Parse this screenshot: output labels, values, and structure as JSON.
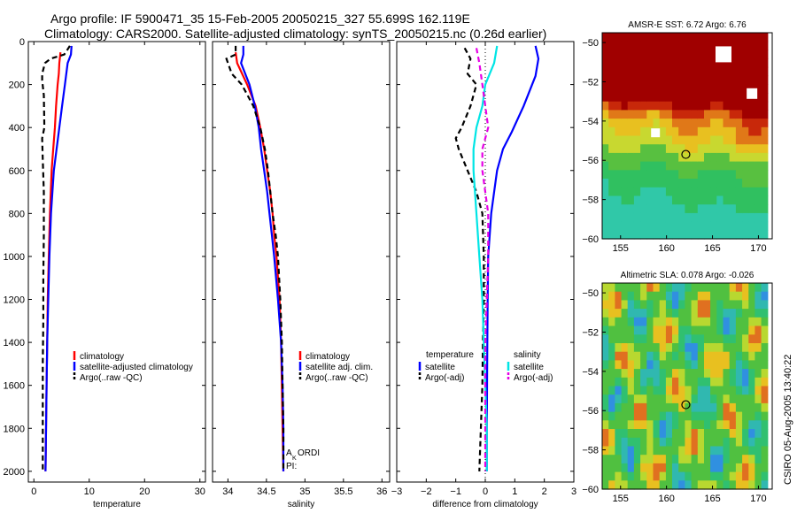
{
  "header": {
    "title_line1": "Argo profile: IF 5900471_35 15-Feb-2005 20050215_327 55.699S 162.119E",
    "title_line2": "Climatology: CARS2000. Satellite-adjusted climatology: synTS_20050215.nc (0.26d earlier)"
  },
  "credit": "CSIRO 05-Aug-2005 13:40:22",
  "colors": {
    "climatology": "#ff0000",
    "satellite": "#0000ff",
    "argo": "#000000",
    "salinity_diff_satellite": "#00e5e5",
    "salinity_diff_argo": "#e600e6"
  },
  "chart_data": [
    {
      "id": "temperature",
      "type": "line",
      "xlabel": "temperature",
      "ylabel": "",
      "xlim": [
        -1,
        31
      ],
      "ylim": [
        2050,
        0
      ],
      "xticks": [
        0,
        10,
        20,
        30
      ],
      "yticks": [
        0,
        200,
        400,
        600,
        800,
        1000,
        1200,
        1400,
        1600,
        1800,
        2000
      ],
      "legend": [
        "climatology",
        "satellite-adjusted climatology",
        "Argo(..raw -QC)"
      ],
      "series": [
        {
          "name": "climatology",
          "color": "#ff0000",
          "dash": false,
          "depth": [
            50,
            100,
            150,
            200,
            300,
            400,
            500,
            600,
            800,
            1000,
            1200,
            1400,
            1600,
            1800,
            2000
          ],
          "values": [
            4.8,
            4.6,
            4.5,
            4.3,
            4.0,
            3.8,
            3.5,
            3.2,
            2.9,
            2.7,
            2.5,
            2.4,
            2.3,
            2.2,
            2.1
          ]
        },
        {
          "name": "satellite-adjusted climatology",
          "color": "#0000ff",
          "dash": false,
          "depth": [
            20,
            60,
            100,
            200,
            300,
            400,
            500,
            600,
            800,
            1000,
            1200,
            1400,
            1600,
            1800,
            2000
          ],
          "values": [
            6.8,
            6.7,
            6.1,
            5.6,
            5.1,
            4.6,
            4.1,
            3.6,
            3.1,
            2.8,
            2.6,
            2.4,
            2.3,
            2.2,
            2.1
          ]
        },
        {
          "name": "Argo(..raw -QC)",
          "color": "#000000",
          "dash": true,
          "depth": [
            20,
            60,
            80,
            100,
            150,
            180,
            250,
            400,
            450,
            550,
            700,
            900,
            1100,
            1300,
            1500,
            1700,
            1900,
            2000
          ],
          "values": [
            6.5,
            5.5,
            3.0,
            2.0,
            1.5,
            1.5,
            1.8,
            1.9,
            1.5,
            1.6,
            1.8,
            1.8,
            1.7,
            1.7,
            1.6,
            1.6,
            1.6,
            1.6
          ]
        }
      ]
    },
    {
      "id": "salinity",
      "type": "line",
      "xlabel": "salinity",
      "ylabel": "",
      "xlim": [
        33.8,
        36.1
      ],
      "ylim": [
        2050,
        0
      ],
      "xticks": [
        34,
        34.5,
        35,
        35.5,
        36
      ],
      "legend": [
        "climatology",
        "satellite adj. clim.",
        "Argo(..raw -QC)"
      ],
      "annotation_line1": "A ORDI",
      "annotation_sub": "K",
      "annotation_line2": "PI:",
      "series": [
        {
          "name": "climatology",
          "color": "#ff0000",
          "dash": false,
          "depth": [
            50,
            100,
            200,
            300,
            400,
            500,
            600,
            700,
            800,
            900,
            1000,
            1200,
            1400,
            1600,
            1800,
            2000
          ],
          "values": [
            34.1,
            34.12,
            34.25,
            34.36,
            34.42,
            34.47,
            34.51,
            34.55,
            34.58,
            34.6,
            34.63,
            34.67,
            34.69,
            34.7,
            34.71,
            34.72
          ]
        },
        {
          "name": "satellite adj. clim.",
          "color": "#0000ff",
          "dash": false,
          "depth": [
            20,
            60,
            100,
            200,
            300,
            400,
            500,
            600,
            700,
            800,
            900,
            1000,
            1200,
            1400,
            1600,
            1800,
            2000
          ],
          "values": [
            34.2,
            34.2,
            34.17,
            34.28,
            34.35,
            34.4,
            34.43,
            34.47,
            34.51,
            34.54,
            34.57,
            34.6,
            34.65,
            34.69,
            34.71,
            34.72,
            34.72
          ]
        },
        {
          "name": "Argo(..raw -QC)",
          "color": "#000000",
          "dash": true,
          "depth": [
            20,
            60,
            80,
            150,
            200,
            300,
            400,
            500,
            600,
            700,
            800,
            900,
            1000,
            1200,
            1400,
            1600,
            1800,
            2000
          ],
          "values": [
            34.1,
            34.1,
            33.98,
            34.05,
            34.18,
            34.33,
            34.42,
            34.48,
            34.52,
            34.55,
            34.58,
            34.62,
            34.65,
            34.68,
            34.7,
            34.71,
            34.72,
            34.72
          ]
        }
      ]
    },
    {
      "id": "difference",
      "type": "line",
      "xlabel": "difference from climatology",
      "ylabel": "",
      "xlim": [
        -3,
        3
      ],
      "ylim": [
        2050,
        0
      ],
      "xticks": [
        -3,
        -2,
        -1,
        0,
        1,
        2,
        3
      ],
      "legend_temperature_title": "temperature",
      "legend_temperature": [
        "satellite",
        "Argo(-adj)"
      ],
      "legend_salinity_title": "salinity",
      "legend_salinity": [
        "satellite",
        "Argo(-adj)"
      ],
      "series": [
        {
          "name": "satellite",
          "group": "temperature",
          "color": "#0000ff",
          "dash": false,
          "depth": [
            20,
            80,
            160,
            300,
            420,
            500,
            600,
            700,
            800,
            1000,
            1200,
            1400,
            1600,
            1800,
            2000
          ],
          "values": [
            1.7,
            1.8,
            1.7,
            1.3,
            0.9,
            0.6,
            0.4,
            0.3,
            0.2,
            0.1,
            0.08,
            0.07,
            0.06,
            0.05,
            0.05
          ]
        },
        {
          "name": "Argo(-adj)",
          "group": "temperature",
          "color": "#000000",
          "dash": true,
          "depth": [
            30,
            80,
            150,
            200,
            300,
            400,
            450,
            500,
            600,
            700,
            800,
            1000,
            1200,
            1400,
            1600,
            1800,
            2000
          ],
          "values": [
            -0.7,
            -0.5,
            -0.6,
            -0.3,
            -0.5,
            -0.8,
            -1.0,
            -0.9,
            -0.6,
            -0.3,
            -0.1,
            -0.05,
            -0.05,
            -0.08,
            -0.1,
            -0.15,
            -0.2
          ]
        },
        {
          "name": "satellite",
          "group": "salinity",
          "color": "#00e5e5",
          "dash": false,
          "depth": [
            20,
            100,
            200,
            300,
            400,
            500,
            600,
            800,
            1000,
            1200,
            1400,
            1600,
            1800,
            2000
          ],
          "values": [
            0.4,
            0.3,
            0.0,
            -0.1,
            -0.3,
            -0.4,
            -0.4,
            -0.3,
            -0.2,
            -0.1,
            -0.05,
            0.0,
            0.05,
            0.05
          ]
        },
        {
          "name": "Argo(-adj)",
          "group": "salinity",
          "color": "#e600e6",
          "dash": true,
          "depth": [
            30,
            100,
            200,
            300,
            400,
            500,
            600,
            800,
            1000,
            1200,
            1400,
            1600,
            1800,
            2000
          ],
          "values": [
            -0.3,
            -0.2,
            -0.1,
            0.0,
            0.1,
            -0.1,
            -0.1,
            0.1,
            0.1,
            0.05,
            0.0,
            0.0,
            0.0,
            0.0
          ]
        }
      ]
    },
    {
      "id": "sst-map",
      "type": "heatmap",
      "title": "AMSR-E SST: 6.72 Argo: 6.76",
      "xlim": [
        153,
        171.5
      ],
      "ylim": [
        -60,
        -49.5
      ],
      "xticks": [
        155,
        160,
        165,
        170
      ],
      "yticks": [
        -50,
        -52,
        -54,
        -56,
        -58,
        -60
      ],
      "profile_marker": [
        162.1,
        -55.7
      ]
    },
    {
      "id": "sla-map",
      "type": "heatmap",
      "title": "Altimetric SLA: 0.078 Argo: -0.026",
      "xlim": [
        153,
        171.5
      ],
      "ylim": [
        -60,
        -49.5
      ],
      "xticks": [
        155,
        160,
        165,
        170
      ],
      "yticks": [
        -50,
        -52,
        -54,
        -56,
        -58,
        -60
      ],
      "profile_marker": [
        162.1,
        -55.7
      ]
    }
  ]
}
